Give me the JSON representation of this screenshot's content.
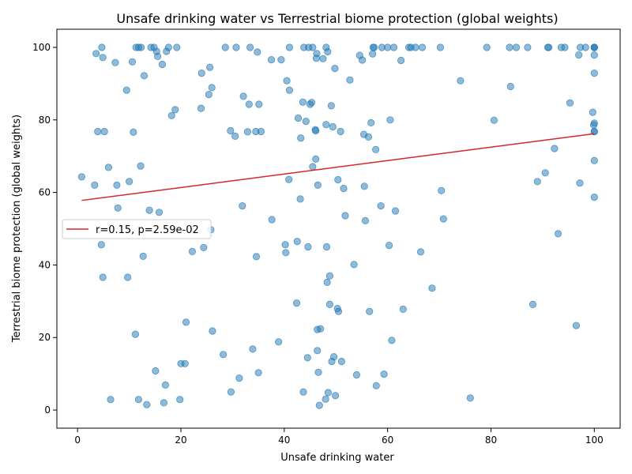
{
  "chart_data": {
    "type": "scatter",
    "title": "Unsafe drinking water vs Terrestrial biome protection (global weights)",
    "xlabel": "Unsafe drinking water",
    "ylabel": "Terrestrial biome protection (global weights)",
    "xlim": [
      -4,
      105
    ],
    "ylim": [
      -5,
      105
    ],
    "xticks": [
      0,
      20,
      40,
      60,
      80,
      100
    ],
    "yticks": [
      0,
      20,
      40,
      60,
      80,
      100
    ],
    "grid": false,
    "legend_position": "center-left",
    "point_color": "#1f77b4",
    "line_color": "#d62728",
    "fit_line": {
      "label": "r=0.15, p=2.59e-02",
      "x": [
        0.8,
        100
      ],
      "y": [
        57.8,
        76.2
      ]
    },
    "points": [
      [
        0.8,
        64.3
      ],
      [
        3.3,
        62
      ],
      [
        3.6,
        98.3
      ],
      [
        3.9,
        76.8
      ],
      [
        4.6,
        45.6
      ],
      [
        4.7,
        100
      ],
      [
        4.9,
        97.2
      ],
      [
        4.9,
        36.6
      ],
      [
        5.2,
        76.8
      ],
      [
        6,
        66.9
      ],
      [
        6.4,
        2.9
      ],
      [
        7.3,
        95.8
      ],
      [
        7.6,
        62
      ],
      [
        7.8,
        55.7
      ],
      [
        9.5,
        88.2
      ],
      [
        9.7,
        36.6
      ],
      [
        10,
        63
      ],
      [
        10.6,
        96
      ],
      [
        10.8,
        76.6
      ],
      [
        11.2,
        20.9
      ],
      [
        11.3,
        100
      ],
      [
        11.8,
        100
      ],
      [
        11.8,
        2.9
      ],
      [
        12.2,
        67.3
      ],
      [
        12.3,
        100
      ],
      [
        12.7,
        42.4
      ],
      [
        12.9,
        92.2
      ],
      [
        13.4,
        1.5
      ],
      [
        13.9,
        55.1
      ],
      [
        14.2,
        100
      ],
      [
        14.8,
        100
      ],
      [
        15.1,
        10.8
      ],
      [
        15.3,
        98.9
      ],
      [
        15.5,
        97.5
      ],
      [
        15.8,
        54.5
      ],
      [
        16.4,
        95.3
      ],
      [
        16.7,
        2
      ],
      [
        17,
        6.9
      ],
      [
        17.2,
        98.9
      ],
      [
        17.6,
        100
      ],
      [
        18.2,
        81.2
      ],
      [
        18.9,
        82.8
      ],
      [
        19.2,
        100
      ],
      [
        19.8,
        2.9
      ],
      [
        20,
        12.8
      ],
      [
        20.8,
        12.8
      ],
      [
        21,
        24.2
      ],
      [
        22.2,
        43.7
      ],
      [
        23.9,
        83.2
      ],
      [
        24,
        92.9
      ],
      [
        24.4,
        44.8
      ],
      [
        25.4,
        87
      ],
      [
        25.6,
        94.5
      ],
      [
        25.8,
        49.7
      ],
      [
        26,
        88.9
      ],
      [
        26.1,
        21.8
      ],
      [
        28.2,
        15.3
      ],
      [
        28.6,
        100
      ],
      [
        29.6,
        77
      ],
      [
        29.7,
        5
      ],
      [
        30.5,
        75.5
      ],
      [
        30.7,
        100
      ],
      [
        31.3,
        8.8
      ],
      [
        31.9,
        56.3
      ],
      [
        32.1,
        86.5
      ],
      [
        32.9,
        76.7
      ],
      [
        33.2,
        84.3
      ],
      [
        33.4,
        100
      ],
      [
        33.9,
        16.8
      ],
      [
        34.5,
        76.8
      ],
      [
        34.6,
        42.3
      ],
      [
        34.8,
        98.7
      ],
      [
        35,
        10.3
      ],
      [
        35.1,
        84.3
      ],
      [
        35.5,
        76.8
      ],
      [
        37.5,
        96.6
      ],
      [
        37.6,
        52.5
      ],
      [
        38.9,
        18.8
      ],
      [
        39.4,
        96.6
      ],
      [
        40.2,
        45.6
      ],
      [
        40.3,
        43.4
      ],
      [
        40.5,
        90.8
      ],
      [
        40.9,
        63.6
      ],
      [
        41,
        88.2
      ],
      [
        41,
        100
      ],
      [
        42.4,
        29.5
      ],
      [
        42.5,
        46.5
      ],
      [
        42.7,
        80.5
      ],
      [
        43.1,
        58.2
      ],
      [
        43.2,
        75
      ],
      [
        43.6,
        84.9
      ],
      [
        43.7,
        5
      ],
      [
        43.8,
        100
      ],
      [
        44.2,
        79.6
      ],
      [
        44.5,
        14.4
      ],
      [
        44.6,
        45
      ],
      [
        44.7,
        100
      ],
      [
        45,
        84.3
      ],
      [
        45.3,
        84.8
      ],
      [
        45.5,
        67.1
      ],
      [
        45.5,
        100
      ],
      [
        46,
        77.3
      ],
      [
        46.1,
        69.2
      ],
      [
        46.1,
        77
      ],
      [
        46.2,
        97
      ],
      [
        46.3,
        98.3
      ],
      [
        46.4,
        16.4
      ],
      [
        46.4,
        22.2
      ],
      [
        46.5,
        62
      ],
      [
        46.6,
        10.4
      ],
      [
        46.8,
        1.3
      ],
      [
        47,
        22.4
      ],
      [
        47.5,
        96.9
      ],
      [
        48,
        3
      ],
      [
        48.1,
        100
      ],
      [
        48.1,
        78.7
      ],
      [
        48.2,
        45
      ],
      [
        48.3,
        35.2
      ],
      [
        48.4,
        98.8
      ],
      [
        48.5,
        4.8
      ],
      [
        48.8,
        29.1
      ],
      [
        48.8,
        37
      ],
      [
        49.1,
        83.9
      ],
      [
        49.2,
        13.4
      ],
      [
        49.4,
        78.1
      ],
      [
        49.6,
        14.7
      ],
      [
        49.8,
        94.2
      ],
      [
        49.9,
        4
      ],
      [
        50.3,
        28
      ],
      [
        50.4,
        63.5
      ],
      [
        50.5,
        27.2
      ],
      [
        50.9,
        76.8
      ],
      [
        51.1,
        13.4
      ],
      [
        51.5,
        61.1
      ],
      [
        51.8,
        53.6
      ],
      [
        52.7,
        91
      ],
      [
        53.5,
        40.1
      ],
      [
        54,
        9.7
      ],
      [
        54.6,
        97.8
      ],
      [
        55.1,
        96.5
      ],
      [
        55.4,
        76
      ],
      [
        55.5,
        61.7
      ],
      [
        55.7,
        52.2
      ],
      [
        56.3,
        75.3
      ],
      [
        56.5,
        27.2
      ],
      [
        56.8,
        79.2
      ],
      [
        57.1,
        98.2
      ],
      [
        57.2,
        100
      ],
      [
        57.4,
        100
      ],
      [
        57.7,
        71.8
      ],
      [
        57.8,
        6.7
      ],
      [
        58.7,
        56.3
      ],
      [
        58.9,
        100
      ],
      [
        59.3,
        9.9
      ],
      [
        60,
        100
      ],
      [
        60.3,
        45.4
      ],
      [
        60.5,
        80
      ],
      [
        60.8,
        19.2
      ],
      [
        61.2,
        100
      ],
      [
        61.5,
        54.9
      ],
      [
        62.6,
        96.4
      ],
      [
        63,
        27.8
      ],
      [
        64.1,
        100
      ],
      [
        64.5,
        100
      ],
      [
        65.4,
        100
      ],
      [
        66.4,
        43.6
      ],
      [
        66.7,
        100
      ],
      [
        68.6,
        33.6
      ],
      [
        70.2,
        100
      ],
      [
        70.4,
        60.5
      ],
      [
        70.8,
        52.7
      ],
      [
        74.1,
        90.8
      ],
      [
        76,
        3.3
      ],
      [
        79.2,
        100
      ],
      [
        80.6,
        79.9
      ],
      [
        83.6,
        100
      ],
      [
        83.8,
        89.2
      ],
      [
        84.9,
        100
      ],
      [
        87.1,
        100
      ],
      [
        88.1,
        29.1
      ],
      [
        89,
        63
      ],
      [
        90.5,
        65.4
      ],
      [
        91,
        100
      ],
      [
        91.2,
        100
      ],
      [
        92.3,
        72.1
      ],
      [
        93,
        48.6
      ],
      [
        93.6,
        100
      ],
      [
        94.3,
        100
      ],
      [
        95.3,
        84.7
      ],
      [
        96.5,
        23.3
      ],
      [
        97,
        97.9
      ],
      [
        97.2,
        62.6
      ],
      [
        97.3,
        100
      ],
      [
        98.3,
        100
      ],
      [
        99.7,
        82.1
      ],
      [
        99.9,
        78.6
      ],
      [
        100,
        79.1
      ],
      [
        100,
        76.8
      ],
      [
        100,
        76.8
      ],
      [
        100,
        68.8
      ],
      [
        100,
        58.7
      ],
      [
        100,
        92.9
      ],
      [
        100,
        97.9
      ],
      [
        100,
        100
      ],
      [
        100,
        100
      ],
      [
        100,
        100
      ]
    ]
  }
}
